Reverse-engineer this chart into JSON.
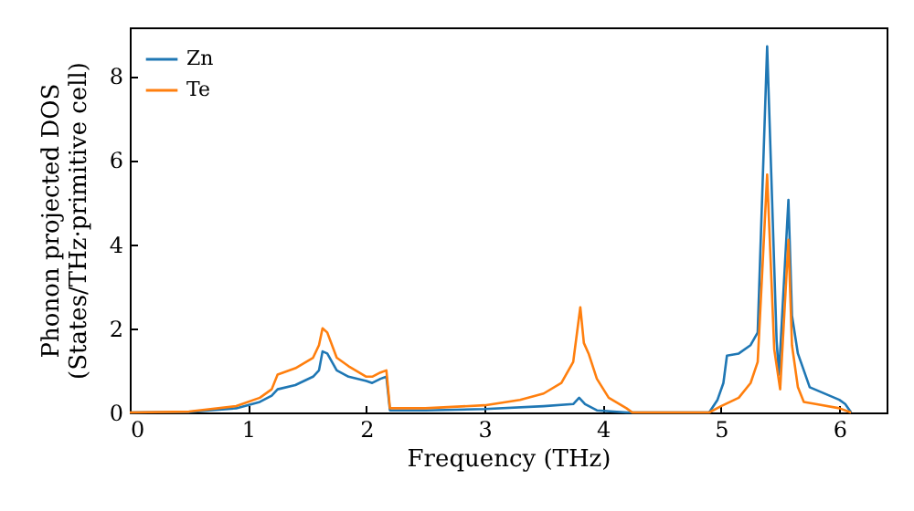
{
  "chart_data": {
    "type": "line",
    "xlabel": "Frequency (THz)",
    "ylabel": "Phonon projected DOS\n(States/THz·primitive cell)",
    "xlim": [
      0,
      6.4
    ],
    "ylim": [
      0,
      9.15
    ],
    "xticks": [
      0,
      1,
      2,
      3,
      4,
      5,
      6
    ],
    "yticks": [
      0,
      2,
      4,
      6,
      8
    ],
    "legend": "top left",
    "grid": false,
    "series": [
      {
        "name": "Zn",
        "color": "#1f77b4",
        "x": [
          0,
          0.5,
          0.9,
          1.1,
          1.2,
          1.25,
          1.4,
          1.55,
          1.6,
          1.63,
          1.67,
          1.75,
          1.85,
          2.0,
          2.05,
          2.12,
          2.17,
          2.2,
          2.5,
          3.0,
          3.5,
          3.75,
          3.8,
          3.85,
          3.95,
          4.2,
          4.9,
          4.97,
          5.02,
          5.05,
          5.15,
          5.25,
          5.31,
          5.39,
          5.47,
          5.49,
          5.57,
          5.6,
          5.65,
          5.75,
          6.0,
          6.05,
          6.1
        ],
        "values": [
          0,
          0.01,
          0.1,
          0.25,
          0.4,
          0.55,
          0.65,
          0.85,
          1.0,
          1.45,
          1.4,
          1.0,
          0.85,
          0.75,
          0.7,
          0.8,
          0.85,
          0.05,
          0.05,
          0.08,
          0.15,
          0.2,
          0.35,
          0.2,
          0.05,
          0,
          0,
          0.3,
          0.7,
          1.35,
          1.4,
          1.6,
          1.9,
          8.7,
          1.7,
          0.9,
          5.05,
          2.3,
          1.4,
          0.6,
          0.3,
          0.2,
          0
        ]
      },
      {
        "name": "Te",
        "color": "#ff7f0e",
        "x": [
          0,
          0.5,
          0.9,
          1.1,
          1.2,
          1.25,
          1.4,
          1.55,
          1.6,
          1.63,
          1.67,
          1.75,
          1.85,
          2.0,
          2.05,
          2.12,
          2.17,
          2.2,
          2.5,
          3.0,
          3.3,
          3.5,
          3.65,
          3.75,
          3.81,
          3.84,
          3.88,
          3.95,
          4.05,
          4.2,
          4.25,
          4.9,
          5.0,
          5.15,
          5.25,
          5.31,
          5.39,
          5.45,
          5.5,
          5.57,
          5.6,
          5.65,
          5.7,
          5.8,
          6.0,
          6.05,
          6.1
        ],
        "values": [
          0,
          0.02,
          0.15,
          0.35,
          0.55,
          0.9,
          1.05,
          1.3,
          1.6,
          2.0,
          1.9,
          1.3,
          1.1,
          0.85,
          0.85,
          0.95,
          1.0,
          0.1,
          0.1,
          0.17,
          0.3,
          0.45,
          0.7,
          1.2,
          2.5,
          1.65,
          1.4,
          0.8,
          0.35,
          0.1,
          0,
          0,
          0.15,
          0.35,
          0.7,
          1.2,
          5.65,
          1.5,
          0.55,
          4.1,
          1.6,
          0.6,
          0.25,
          0.2,
          0.1,
          0.05,
          0
        ]
      }
    ]
  }
}
